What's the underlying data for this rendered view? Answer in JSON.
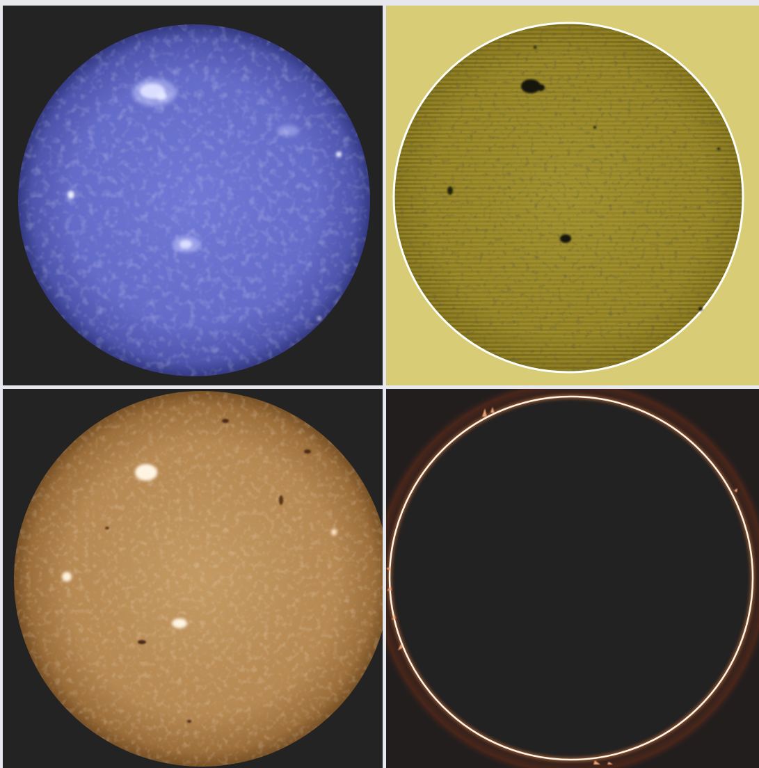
{
  "panels": [
    {
      "id": "ca-k",
      "background": "#232323",
      "disk": "#5e66c4",
      "highlight": "#dfe4ff"
    },
    {
      "id": "continuum",
      "background": "#d8cd76",
      "disk": "#8f7f1e",
      "rim": "#ffffff",
      "spot": "#1a1a10"
    },
    {
      "id": "h-alpha",
      "background": "#232323",
      "disk": "#b88a52",
      "highlight": "#fff2df",
      "filament": "#4a2c14"
    },
    {
      "id": "prominence",
      "background": "#221e1e",
      "disk": "#222222",
      "rim": "#fff6e8",
      "glow": "#e07a3c"
    }
  ]
}
